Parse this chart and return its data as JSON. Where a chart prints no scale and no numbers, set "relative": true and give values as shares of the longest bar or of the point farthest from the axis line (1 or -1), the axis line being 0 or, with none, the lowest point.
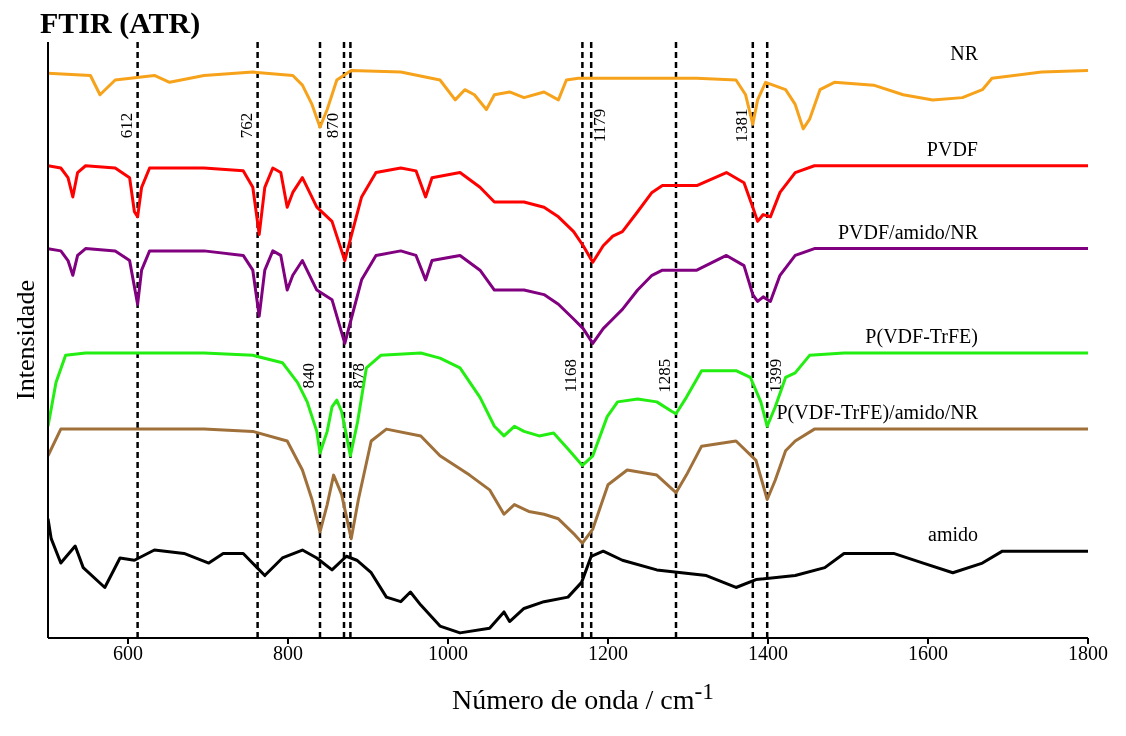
{
  "chart_data": {
    "type": "line",
    "title": "FTIR (ATR)",
    "xlabel": "Número de onda / cm$^{-1}$",
    "ylabel": "Intensidade",
    "relative": true,
    "xlim": [
      500,
      1800
    ],
    "xticks": [
      600,
      800,
      1000,
      1200,
      1400,
      1600,
      1800
    ],
    "series": [
      {
        "name": "NR",
        "color": "#f7a21b",
        "x": [
          500,
          553,
          565,
          584,
          633,
          652,
          695,
          756,
          806,
          818,
          830,
          840,
          849,
          861,
          879,
          941,
          990,
          1009,
          1021,
          1033,
          1048,
          1058,
          1077,
          1095,
          1120,
          1138,
          1148,
          1163,
          1249,
          1311,
          1360,
          1372,
          1381,
          1387,
          1397,
          1422,
          1434,
          1444,
          1452,
          1465,
          1483,
          1532,
          1569,
          1606,
          1643,
          1668,
          1680,
          1742,
          1800
        ],
        "values": [
          0.995,
          0.991,
          0.957,
          0.983,
          0.991,
          0.979,
          0.991,
          0.997,
          0.991,
          0.974,
          0.94,
          0.9,
          0.931,
          0.983,
          1,
          0.997,
          0.983,
          0.948,
          0.966,
          0.957,
          0.931,
          0.957,
          0.962,
          0.952,
          0.962,
          0.948,
          0.983,
          0.986,
          0.986,
          0.986,
          0.983,
          0.957,
          0.905,
          0.948,
          0.979,
          0.966,
          0.94,
          0.897,
          0.914,
          0.966,
          0.979,
          0.974,
          0.957,
          0.948,
          0.952,
          0.966,
          0.986,
          0.997,
          1
        ]
      },
      {
        "name": "PVDF",
        "color": "#ff0000",
        "x": [
          500,
          516,
          525,
          531,
          537,
          547,
          584,
          602,
          608,
          612,
          617,
          627,
          695,
          744,
          756,
          764,
          771,
          781,
          791,
          799,
          806,
          818,
          836,
          855,
          871,
          879,
          892,
          910,
          941,
          960,
          972,
          980,
          1015,
          1040,
          1058,
          1077,
          1095,
          1120,
          1138,
          1157,
          1169,
          1181,
          1194,
          1206,
          1218,
          1237,
          1255,
          1268,
          1311,
          1348,
          1370,
          1381,
          1387,
          1394,
          1403,
          1415,
          1434,
          1458,
          1800
        ],
        "values": [
          0.832,
          0.828,
          0.811,
          0.777,
          0.82,
          0.832,
          0.828,
          0.811,
          0.751,
          0.742,
          0.794,
          0.828,
          0.828,
          0.823,
          0.794,
          0.711,
          0.794,
          0.828,
          0.82,
          0.759,
          0.785,
          0.811,
          0.759,
          0.734,
          0.665,
          0.708,
          0.777,
          0.82,
          0.828,
          0.823,
          0.777,
          0.811,
          0.82,
          0.794,
          0.768,
          0.768,
          0.768,
          0.759,
          0.742,
          0.716,
          0.691,
          0.662,
          0.691,
          0.708,
          0.716,
          0.751,
          0.785,
          0.797,
          0.797,
          0.82,
          0.802,
          0.759,
          0.734,
          0.746,
          0.742,
          0.785,
          0.82,
          0.832,
          0.832
        ]
      },
      {
        "name": "PVDF/amido/NR",
        "color": "#800080",
        "x": [
          500,
          516,
          525,
          531,
          537,
          547,
          584,
          602,
          612,
          617,
          627,
          695,
          744,
          756,
          764,
          771,
          781,
          791,
          799,
          806,
          818,
          836,
          855,
          871,
          879,
          892,
          910,
          941,
          960,
          972,
          980,
          1015,
          1040,
          1058,
          1077,
          1095,
          1120,
          1138,
          1157,
          1169,
          1181,
          1194,
          1206,
          1218,
          1237,
          1255,
          1268,
          1311,
          1348,
          1370,
          1381,
          1387,
          1394,
          1403,
          1415,
          1434,
          1458,
          1800
        ],
        "values": [
          0.686,
          0.682,
          0.665,
          0.639,
          0.674,
          0.686,
          0.682,
          0.665,
          0.588,
          0.648,
          0.682,
          0.682,
          0.674,
          0.648,
          0.567,
          0.648,
          0.682,
          0.674,
          0.613,
          0.639,
          0.665,
          0.613,
          0.596,
          0.519,
          0.562,
          0.631,
          0.674,
          0.682,
          0.674,
          0.631,
          0.665,
          0.674,
          0.648,
          0.613,
          0.613,
          0.613,
          0.605,
          0.588,
          0.562,
          0.545,
          0.519,
          0.545,
          0.562,
          0.579,
          0.613,
          0.639,
          0.648,
          0.648,
          0.674,
          0.656,
          0.605,
          0.593,
          0.601,
          0.593,
          0.639,
          0.674,
          0.686,
          0.686
        ]
      },
      {
        "name": "P(VDF-TrFE)",
        "color": "#22ee11",
        "x": [
          500,
          510,
          522,
          547,
          695,
          756,
          793,
          812,
          824,
          836,
          840,
          849,
          855,
          861,
          867,
          872,
          878,
          887,
          898,
          916,
          966,
          990,
          1015,
          1040,
          1058,
          1070,
          1083,
          1095,
          1114,
          1132,
          1150,
          1168,
          1181,
          1199,
          1212,
          1237,
          1261,
          1280,
          1285,
          1298,
          1317,
          1360,
          1378,
          1391,
          1399,
          1409,
          1422,
          1434,
          1452,
          1495,
          1800
        ],
        "values": [
          0.373,
          0.45,
          0.498,
          0.502,
          0.502,
          0.498,
          0.485,
          0.45,
          0.416,
          0.364,
          0.326,
          0.364,
          0.407,
          0.419,
          0.399,
          0.364,
          0.321,
          0.381,
          0.476,
          0.498,
          0.502,
          0.493,
          0.476,
          0.424,
          0.373,
          0.356,
          0.373,
          0.364,
          0.356,
          0.361,
          0.333,
          0.304,
          0.321,
          0.39,
          0.416,
          0.421,
          0.416,
          0.399,
          0.395,
          0.424,
          0.471,
          0.471,
          0.459,
          0.416,
          0.373,
          0.407,
          0.459,
          0.467,
          0.498,
          0.502,
          0.502
        ]
      },
      {
        "name": "P(VDF-TrFE)/amido/NR",
        "color": "#a0703a",
        "x": [
          500,
          516,
          547,
          695,
          756,
          799,
          818,
          830,
          840,
          849,
          857,
          867,
          879,
          888,
          904,
          923,
          966,
          990,
          1027,
          1052,
          1070,
          1083,
          1101,
          1120,
          1138,
          1157,
          1168,
          1181,
          1200,
          1224,
          1261,
          1285,
          1298,
          1317,
          1360,
          1385,
          1399,
          1409,
          1422,
          1434,
          1458,
          1800
        ],
        "values": [
          0.321,
          0.368,
          0.368,
          0.368,
          0.364,
          0.347,
          0.296,
          0.244,
          0.187,
          0.235,
          0.287,
          0.253,
          0.175,
          0.244,
          0.347,
          0.368,
          0.356,
          0.321,
          0.287,
          0.261,
          0.218,
          0.235,
          0.223,
          0.218,
          0.21,
          0.184,
          0.167,
          0.192,
          0.27,
          0.296,
          0.287,
          0.256,
          0.287,
          0.338,
          0.347,
          0.313,
          0.244,
          0.278,
          0.33,
          0.347,
          0.368,
          0.368
        ]
      },
      {
        "name": "amido",
        "color": "#000000",
        "x": [
          500,
          504,
          516,
          534,
          544,
          571,
          590,
          608,
          633,
          670,
          701,
          719,
          744,
          771,
          793,
          818,
          836,
          855,
          873,
          886,
          904,
          923,
          941,
          953,
          966,
          990,
          1015,
          1052,
          1070,
          1077,
          1095,
          1120,
          1150,
          1167,
          1179,
          1194,
          1218,
          1261,
          1323,
          1360,
          1385,
          1434,
          1471,
          1495,
          1557,
          1594,
          1631,
          1668,
          1693,
          1800
        ],
        "values": [
          0.21,
          0.175,
          0.132,
          0.162,
          0.124,
          0.089,
          0.141,
          0.137,
          0.155,
          0.149,
          0.132,
          0.149,
          0.149,
          0.11,
          0.141,
          0.155,
          0.141,
          0.12,
          0.144,
          0.137,
          0.115,
          0.072,
          0.064,
          0.081,
          0.058,
          0.021,
          0.009,
          0.017,
          0.046,
          0.029,
          0.052,
          0.064,
          0.072,
          0.098,
          0.144,
          0.153,
          0.137,
          0.12,
          0.11,
          0.089,
          0.103,
          0.11,
          0.124,
          0.149,
          0.149,
          0.132,
          0.115,
          0.132,
          0.153,
          0.153
        ]
      }
    ],
    "ref_lines": [
      {
        "axis": "x",
        "value": 612,
        "label": "612",
        "color": "#000000",
        "line_style": "dashed"
      },
      {
        "axis": "x",
        "value": 762,
        "label": "762",
        "color": "#000000",
        "line_style": "dashed"
      },
      {
        "axis": "x",
        "value": 870,
        "label": "870",
        "color": "#000000",
        "line_style": "dashed"
      },
      {
        "axis": "x",
        "value": 1179,
        "label": "1179",
        "color": "#000000",
        "line_style": "dashed"
      },
      {
        "axis": "x",
        "value": 1381,
        "label": "1381",
        "color": "#000000",
        "line_style": "dashed"
      },
      {
        "axis": "x",
        "value": 840,
        "label": "840",
        "color": "#000000",
        "line_style": "dashed"
      },
      {
        "axis": "x",
        "value": 878,
        "label": "878",
        "color": "#000000",
        "line_style": "dashed"
      },
      {
        "axis": "x",
        "value": 1168,
        "label": "1168",
        "color": "#000000",
        "line_style": "dashed"
      },
      {
        "axis": "x",
        "value": 1285,
        "label": "1285",
        "color": "#000000",
        "line_style": "dashed"
      },
      {
        "axis": "x",
        "value": 1399,
        "label": "1399",
        "color": "#000000",
        "line_style": "dashed"
      }
    ]
  }
}
